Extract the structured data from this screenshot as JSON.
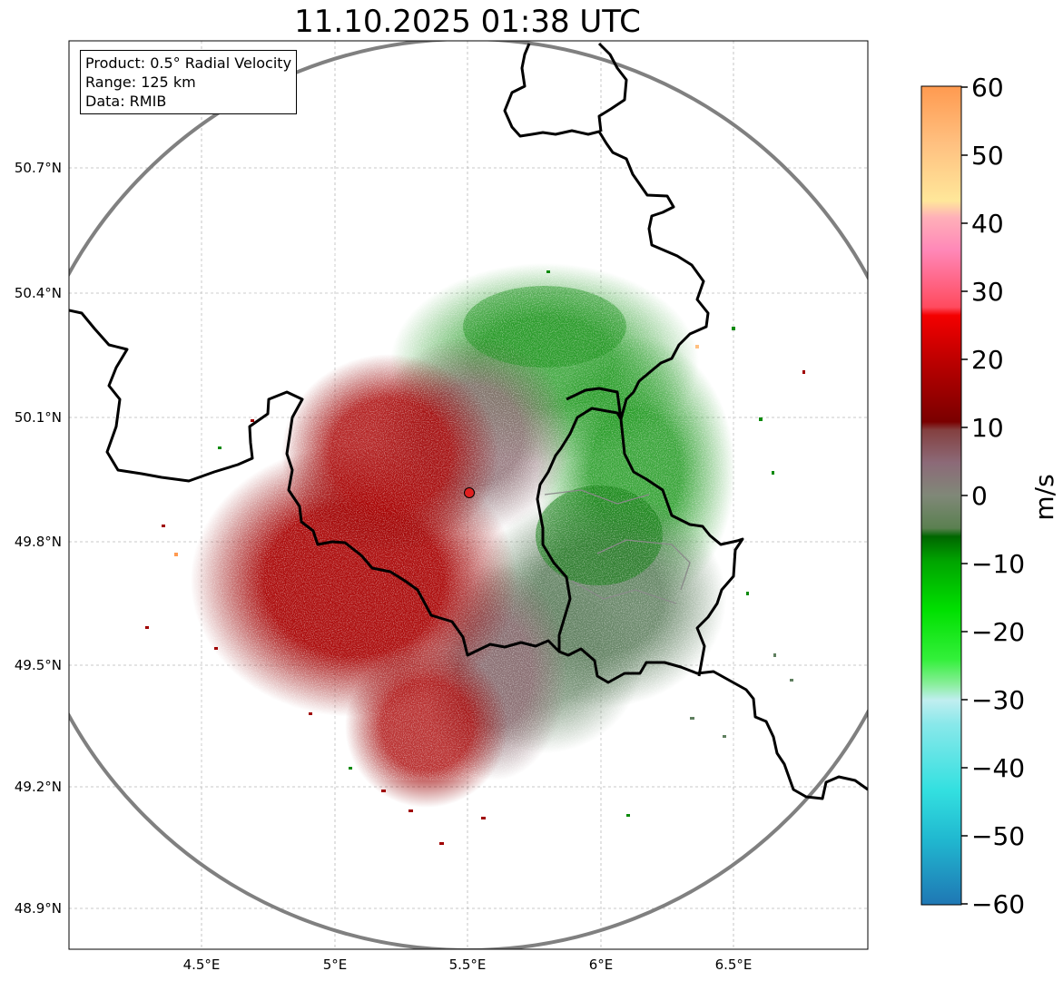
{
  "title": "11.10.2025 01:38 UTC",
  "info": {
    "product": "Product: 0.5° Radial Velocity",
    "range": "Range: 125 km",
    "data": "Data: RMIB"
  },
  "axes": {
    "x_ticks": [
      "4.5°E",
      "5°E",
      "5.5°E",
      "6°E",
      "6.5°E"
    ],
    "y_ticks": [
      "50.7°N",
      "50.4°N",
      "50.1°N",
      "49.8°N",
      "49.5°N",
      "49.2°N",
      "48.9°N"
    ]
  },
  "colorbar": {
    "label": "m/s",
    "ticks": [
      "60",
      "50",
      "40",
      "30",
      "20",
      "10",
      "0",
      "−10",
      "−20",
      "−30",
      "−40",
      "−50",
      "−60"
    ],
    "min": -60,
    "max": 60
  },
  "colors": {
    "outbound_strong": "#d40000",
    "outbound": "#a30000",
    "near_zero_pos": "#8a6a70",
    "near_zero_neg": "#5f7f5f",
    "inbound": "#0a8a0a",
    "range_ring": "#808080",
    "radar_site": "#e02020"
  },
  "radar_site": {
    "lon": 5.505,
    "lat": 49.914
  }
}
